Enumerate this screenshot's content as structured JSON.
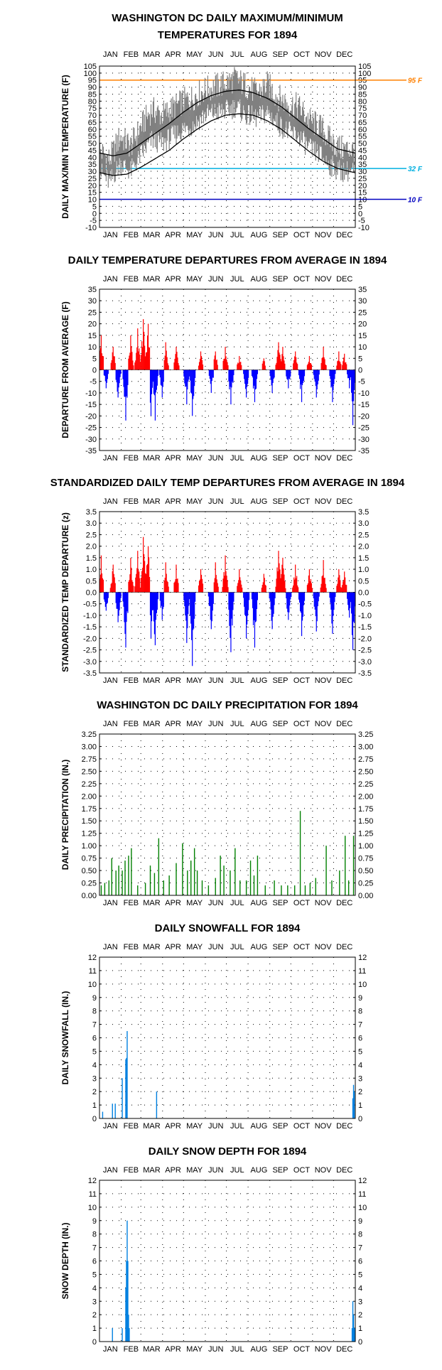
{
  "months": [
    "JAN",
    "FEB",
    "MAR",
    "APR",
    "MAY",
    "JUN",
    "JUL",
    "AUG",
    "SEP",
    "OCT",
    "NOV",
    "DEC"
  ],
  "chart_data": [
    {
      "type": "line",
      "title": [
        "WASHINGTON DC DAILY MAXIMUM/MINIMUM",
        "TEMPERATURES FOR 1894"
      ],
      "ylabel": "DAILY MAX/MIN TEMPERATURE (F)",
      "ylim": [
        -10,
        105
      ],
      "ytick_step": 5,
      "month_labels_top": true,
      "month_labels_bottom": true,
      "reference_lines": [
        {
          "value": 95,
          "label": "95 F",
          "color": "#ff8000"
        },
        {
          "value": 32,
          "label": "32 F",
          "color": "#00b0e0"
        },
        {
          "value": 10,
          "label": "10 F",
          "color": "#0000c0"
        }
      ],
      "series": [],
      "max_anchor_days": [
        1,
        15,
        30,
        45,
        60,
        75,
        90,
        105,
        120,
        135,
        150,
        165,
        180,
        195,
        210,
        225,
        240,
        255,
        270,
        285,
        300,
        315,
        330,
        345,
        365
      ],
      "max_anchor_values": [
        45,
        38,
        55,
        48,
        62,
        74,
        70,
        75,
        80,
        83,
        88,
        90,
        93,
        96,
        91,
        86,
        92,
        83,
        78,
        76,
        66,
        62,
        52,
        46,
        45
      ],
      "min_anchor_days": [
        1,
        15,
        30,
        45,
        60,
        75,
        90,
        105,
        120,
        135,
        150,
        165,
        180,
        195,
        210,
        225,
        240,
        255,
        270,
        285,
        300,
        315,
        330,
        345,
        365
      ],
      "min_anchor_values": [
        30,
        22,
        36,
        30,
        42,
        52,
        50,
        55,
        60,
        63,
        70,
        72,
        73,
        76,
        70,
        68,
        72,
        64,
        58,
        55,
        46,
        42,
        34,
        30,
        30
      ],
      "normal_max_anchor_days": [
        1,
        20,
        40,
        60,
        80,
        100,
        120,
        140,
        160,
        180,
        200,
        220,
        240,
        260,
        280,
        300,
        320,
        340,
        365
      ],
      "normal_max_anchor_values": [
        43,
        41,
        43,
        50,
        57,
        64,
        72,
        79,
        84,
        87,
        88,
        86,
        82,
        76,
        68,
        60,
        53,
        46,
        43
      ],
      "normal_min_anchor_days": [
        1,
        20,
        40,
        60,
        80,
        100,
        120,
        140,
        160,
        180,
        200,
        220,
        240,
        260,
        280,
        300,
        320,
        340,
        365
      ],
      "normal_min_anchor_values": [
        29,
        27,
        28,
        33,
        39,
        45,
        53,
        60,
        66,
        70,
        71,
        70,
        66,
        60,
        52,
        44,
        37,
        32,
        29
      ]
    },
    {
      "type": "bar",
      "title": [
        "DAILY TEMPERATURE DEPARTURES FROM AVERAGE IN 1894"
      ],
      "ylabel": "DEPARTURE FROM AVERAGE (F)",
      "ylim": [
        -35,
        35
      ],
      "ytick_step": 5,
      "month_labels_top": true,
      "month_labels_bottom": true,
      "pos_color": "#ff0000",
      "neg_color": "#0000ff",
      "peaks": [
        {
          "day": 3,
          "value": 15
        },
        {
          "day": 10,
          "value": -8
        },
        {
          "day": 20,
          "value": 10
        },
        {
          "day": 27,
          "value": -12
        },
        {
          "day": 38,
          "value": -22
        },
        {
          "day": 45,
          "value": 15
        },
        {
          "day": 55,
          "value": 18
        },
        {
          "day": 63,
          "value": 22
        },
        {
          "day": 70,
          "value": 20
        },
        {
          "day": 74,
          "value": -20
        },
        {
          "day": 80,
          "value": -22
        },
        {
          "day": 90,
          "value": -12
        },
        {
          "day": 95,
          "value": 12
        },
        {
          "day": 110,
          "value": 10
        },
        {
          "day": 125,
          "value": -15
        },
        {
          "day": 133,
          "value": -20
        },
        {
          "day": 145,
          "value": 8
        },
        {
          "day": 160,
          "value": -10
        },
        {
          "day": 166,
          "value": 8
        },
        {
          "day": 180,
          "value": 10
        },
        {
          "day": 188,
          "value": -15
        },
        {
          "day": 200,
          "value": 6
        },
        {
          "day": 210,
          "value": -12
        },
        {
          "day": 222,
          "value": -14
        },
        {
          "day": 235,
          "value": 5
        },
        {
          "day": 247,
          "value": -10
        },
        {
          "day": 256,
          "value": 12
        },
        {
          "day": 262,
          "value": 10
        },
        {
          "day": 270,
          "value": -8
        },
        {
          "day": 280,
          "value": 8
        },
        {
          "day": 289,
          "value": -14
        },
        {
          "day": 300,
          "value": 6
        },
        {
          "day": 310,
          "value": -12
        },
        {
          "day": 320,
          "value": 10
        },
        {
          "day": 333,
          "value": -14
        },
        {
          "day": 342,
          "value": 8
        },
        {
          "day": 350,
          "value": 7
        },
        {
          "day": 357,
          "value": -8
        },
        {
          "day": 362,
          "value": -24
        }
      ]
    },
    {
      "type": "bar",
      "title": [
        "STANDARDIZED DAILY TEMP DEPARTURES FROM AVERAGE IN 1894"
      ],
      "ylabel": "STANDARDIZED TEMP DEPARTURE (z)",
      "ylim": [
        -3.5,
        3.5
      ],
      "ytick_step": 0.5,
      "tick_decimals": 1,
      "month_labels_top": true,
      "month_labels_bottom": true,
      "pos_color": "#ff0000",
      "neg_color": "#0000ff",
      "peaks": [
        {
          "day": 3,
          "value": 1.6
        },
        {
          "day": 10,
          "value": -0.8
        },
        {
          "day": 20,
          "value": 1.2
        },
        {
          "day": 27,
          "value": -1.3
        },
        {
          "day": 38,
          "value": -2.4
        },
        {
          "day": 45,
          "value": 1.5
        },
        {
          "day": 55,
          "value": 1.8
        },
        {
          "day": 63,
          "value": 2.4
        },
        {
          "day": 70,
          "value": 2.0
        },
        {
          "day": 74,
          "value": -2.0
        },
        {
          "day": 80,
          "value": -2.3
        },
        {
          "day": 90,
          "value": -1.2
        },
        {
          "day": 95,
          "value": 1.3
        },
        {
          "day": 110,
          "value": 1.2
        },
        {
          "day": 125,
          "value": -2.2
        },
        {
          "day": 133,
          "value": -3.2
        },
        {
          "day": 145,
          "value": 1.0
        },
        {
          "day": 160,
          "value": -1.6
        },
        {
          "day": 166,
          "value": 1.3
        },
        {
          "day": 180,
          "value": 1.6
        },
        {
          "day": 188,
          "value": -2.6
        },
        {
          "day": 200,
          "value": 1.0
        },
        {
          "day": 210,
          "value": -2.0
        },
        {
          "day": 222,
          "value": -2.4
        },
        {
          "day": 235,
          "value": 0.8
        },
        {
          "day": 247,
          "value": -1.6
        },
        {
          "day": 256,
          "value": 1.8
        },
        {
          "day": 262,
          "value": 1.5
        },
        {
          "day": 270,
          "value": -1.2
        },
        {
          "day": 280,
          "value": 1.2
        },
        {
          "day": 289,
          "value": -1.9
        },
        {
          "day": 300,
          "value": 1.0
        },
        {
          "day": 310,
          "value": -1.7
        },
        {
          "day": 320,
          "value": 1.4
        },
        {
          "day": 333,
          "value": -1.8
        },
        {
          "day": 342,
          "value": 1.0
        },
        {
          "day": 350,
          "value": 0.9
        },
        {
          "day": 357,
          "value": -1.1
        },
        {
          "day": 362,
          "value": -2.5
        }
      ]
    },
    {
      "type": "bar",
      "title": [
        "WASHINGTON DC DAILY PRECIPITATION FOR 1894"
      ],
      "ylabel": "DAILY PRECIPITATION (IN.)",
      "ylim": [
        0,
        3.25
      ],
      "ytick_step": 0.25,
      "tick_decimals": 2,
      "month_labels_top": true,
      "month_labels_bottom": true,
      "bar_color": "#008000",
      "peaks": [
        {
          "day": 3,
          "value": 0.2
        },
        {
          "day": 8,
          "value": 0.25
        },
        {
          "day": 14,
          "value": 0.3
        },
        {
          "day": 18,
          "value": 0.75
        },
        {
          "day": 24,
          "value": 0.5
        },
        {
          "day": 28,
          "value": 0.6
        },
        {
          "day": 33,
          "value": 0.5
        },
        {
          "day": 37,
          "value": 0.7
        },
        {
          "day": 42,
          "value": 0.8
        },
        {
          "day": 46,
          "value": 0.95
        },
        {
          "day": 55,
          "value": 0.2
        },
        {
          "day": 66,
          "value": 0.25
        },
        {
          "day": 73,
          "value": 0.6
        },
        {
          "day": 79,
          "value": 0.45
        },
        {
          "day": 85,
          "value": 1.15
        },
        {
          "day": 92,
          "value": 0.3
        },
        {
          "day": 100,
          "value": 0.4
        },
        {
          "day": 110,
          "value": 0.65
        },
        {
          "day": 119,
          "value": 1.05
        },
        {
          "day": 126,
          "value": 0.5
        },
        {
          "day": 131,
          "value": 0.7
        },
        {
          "day": 136,
          "value": 0.95
        },
        {
          "day": 140,
          "value": 0.5
        },
        {
          "day": 147,
          "value": 0.3
        },
        {
          "day": 156,
          "value": 0.2
        },
        {
          "day": 166,
          "value": 0.35
        },
        {
          "day": 173,
          "value": 0.8
        },
        {
          "day": 178,
          "value": 0.6
        },
        {
          "day": 187,
          "value": 0.5
        },
        {
          "day": 194,
          "value": 0.95
        },
        {
          "day": 201,
          "value": 0.3
        },
        {
          "day": 210,
          "value": 0.3
        },
        {
          "day": 216,
          "value": 0.7
        },
        {
          "day": 221,
          "value": 0.4
        },
        {
          "day": 226,
          "value": 0.8
        },
        {
          "day": 237,
          "value": 0.2
        },
        {
          "day": 250,
          "value": 0.3
        },
        {
          "day": 260,
          "value": 0.2
        },
        {
          "day": 269,
          "value": 0.2
        },
        {
          "day": 279,
          "value": 0.2
        },
        {
          "day": 287,
          "value": 1.7
        },
        {
          "day": 294,
          "value": 0.2
        },
        {
          "day": 301,
          "value": 0.25
        },
        {
          "day": 309,
          "value": 0.35
        },
        {
          "day": 324,
          "value": 1.0
        },
        {
          "day": 332,
          "value": 0.3
        },
        {
          "day": 343,
          "value": 0.5
        },
        {
          "day": 351,
          "value": 1.2
        },
        {
          "day": 356,
          "value": 0.3
        },
        {
          "day": 363,
          "value": 1.2
        }
      ]
    },
    {
      "type": "bar",
      "title": [
        "DAILY SNOWFALL FOR 1894"
      ],
      "ylabel": "DAILY SNOWFALL (IN.)",
      "ylim": [
        0,
        12
      ],
      "ytick_step": 1,
      "month_labels_top": true,
      "month_labels_bottom": true,
      "bar_color": "#0080e0",
      "peaks": [
        {
          "day": 5,
          "value": 0.5
        },
        {
          "day": 19,
          "value": 1.1
        },
        {
          "day": 23,
          "value": 1.1
        },
        {
          "day": 33,
          "value": 3.0
        },
        {
          "day": 38,
          "value": 4.4
        },
        {
          "day": 39,
          "value": 4.5
        },
        {
          "day": 40,
          "value": 6.5
        },
        {
          "day": 82,
          "value": 2.0
        },
        {
          "day": 362,
          "value": 1.5
        },
        {
          "day": 363,
          "value": 2.5
        },
        {
          "day": 364,
          "value": 2.0
        }
      ]
    },
    {
      "type": "bar",
      "title": [
        "DAILY SNOW DEPTH FOR 1894"
      ],
      "ylabel": "SNOW DEPTH (IN.)",
      "ylim": [
        0,
        12
      ],
      "ytick_step": 1,
      "month_labels_top": true,
      "month_labels_bottom": true,
      "bar_color": "#0080e0",
      "peaks": [
        {
          "day": 19,
          "value": 1.0
        },
        {
          "day": 33,
          "value": 1.0
        },
        {
          "day": 38,
          "value": 4.0
        },
        {
          "day": 39,
          "value": 6.0
        },
        {
          "day": 40,
          "value": 9.0
        },
        {
          "day": 41,
          "value": 6.0
        },
        {
          "day": 42,
          "value": 2.0
        },
        {
          "day": 43,
          "value": 1.0
        },
        {
          "day": 361,
          "value": 1.0
        },
        {
          "day": 362,
          "value": 3.0
        },
        {
          "day": 363,
          "value": 2.0
        },
        {
          "day": 364,
          "value": 1.0
        },
        {
          "day": 365,
          "value": 1.0
        }
      ]
    }
  ]
}
